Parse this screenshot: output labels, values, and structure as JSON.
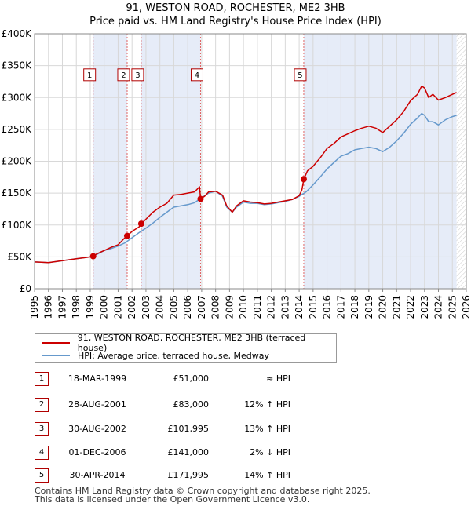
{
  "chart_data": {
    "type": "line",
    "title": "91, WESTON ROAD, ROCHESTER, ME2 3HB",
    "subtitle": "Price paid vs. HM Land Registry's House Price Index (HPI)",
    "xlabel": "",
    "ylabel": "",
    "xlim": [
      1995,
      2026
    ],
    "ylim": [
      0,
      400000
    ],
    "x_ticks": [
      "1995",
      "1996",
      "1997",
      "1998",
      "1999",
      "2000",
      "2001",
      "2002",
      "2003",
      "2004",
      "2005",
      "2006",
      "2007",
      "2008",
      "2009",
      "2010",
      "2011",
      "2012",
      "2013",
      "2014",
      "2015",
      "2016",
      "2017",
      "2018",
      "2019",
      "2020",
      "2021",
      "2022",
      "2023",
      "2024",
      "2025",
      "2026"
    ],
    "y_tick_values": [
      0,
      50000,
      100000,
      150000,
      200000,
      250000,
      300000,
      350000,
      400000
    ],
    "y_ticks": [
      "£0",
      "£50K",
      "£100K",
      "£150K",
      "£200K",
      "£250K",
      "£300K",
      "£350K",
      "£400K"
    ],
    "grid": true,
    "series": [
      {
        "name": "91, WESTON ROAD, ROCHESTER, ME2 3HB (terraced house)",
        "color": "#cc0000",
        "x": [
          1995.0,
          1995.5,
          1996.0,
          1996.5,
          1997.0,
          1997.5,
          1998.0,
          1998.5,
          1999.0,
          1999.21,
          1999.5,
          2000.0,
          2000.5,
          2001.0,
          2001.4,
          2001.65,
          2002.0,
          2002.5,
          2002.66,
          2003.0,
          2003.5,
          2004.0,
          2004.5,
          2005.0,
          2005.5,
          2006.0,
          2006.5,
          2006.85,
          2006.92,
          2007.2,
          2007.5,
          2008.0,
          2008.5,
          2008.8,
          2009.2,
          2009.5,
          2010.0,
          2010.5,
          2011.0,
          2011.5,
          2012.0,
          2012.5,
          2013.0,
          2013.5,
          2014.0,
          2014.2,
          2014.33,
          2014.6,
          2015.0,
          2015.5,
          2016.0,
          2016.5,
          2017.0,
          2017.5,
          2018.0,
          2018.5,
          2019.0,
          2019.5,
          2020.0,
          2020.5,
          2021.0,
          2021.5,
          2022.0,
          2022.5,
          2022.8,
          2023.0,
          2023.3,
          2023.6,
          2024.0,
          2024.5,
          2025.0,
          2025.3
        ],
        "values": [
          42000,
          41500,
          41000,
          42500,
          44000,
          45500,
          47000,
          48500,
          50000,
          51000,
          55000,
          60000,
          65000,
          69000,
          78000,
          83000,
          90000,
          97000,
          101995,
          109000,
          120000,
          128000,
          134000,
          147000,
          148000,
          150000,
          152000,
          160000,
          141000,
          145000,
          152000,
          153000,
          147000,
          130000,
          120000,
          130000,
          138000,
          136000,
          135000,
          133000,
          134000,
          136000,
          138000,
          140000,
          146000,
          155000,
          171995,
          185000,
          192000,
          205000,
          220000,
          228000,
          238000,
          243000,
          248000,
          252000,
          255000,
          252000,
          245000,
          255000,
          265000,
          278000,
          295000,
          305000,
          318000,
          315000,
          300000,
          305000,
          296000,
          300000,
          305000,
          308000
        ]
      },
      {
        "name": "HPI: Average price, terraced house, Medway",
        "color": "#6699cc",
        "x": [
          1995.0,
          1995.5,
          1996.0,
          1996.5,
          1997.0,
          1997.5,
          1998.0,
          1998.5,
          1999.0,
          1999.5,
          2000.0,
          2000.5,
          2001.0,
          2001.5,
          2002.0,
          2002.5,
          2003.0,
          2003.5,
          2004.0,
          2004.5,
          2005.0,
          2005.5,
          2006.0,
          2006.5,
          2007.0,
          2007.5,
          2008.0,
          2008.5,
          2008.8,
          2009.2,
          2009.5,
          2010.0,
          2010.5,
          2011.0,
          2011.5,
          2012.0,
          2012.5,
          2013.0,
          2013.5,
          2014.0,
          2014.5,
          2015.0,
          2015.5,
          2016.0,
          2016.5,
          2017.0,
          2017.5,
          2018.0,
          2018.5,
          2019.0,
          2019.5,
          2020.0,
          2020.5,
          2021.0,
          2021.5,
          2022.0,
          2022.5,
          2022.8,
          2023.0,
          2023.3,
          2023.6,
          2024.0,
          2024.5,
          2025.0,
          2025.3
        ],
        "values": [
          42000,
          41500,
          41000,
          42500,
          44000,
          45500,
          47000,
          48500,
          50000,
          54000,
          60000,
          63000,
          67000,
          72000,
          80000,
          88000,
          95000,
          103000,
          112000,
          120000,
          128000,
          130000,
          132000,
          135000,
          143000,
          150000,
          153000,
          145000,
          128000,
          120000,
          128000,
          136000,
          134000,
          134000,
          132000,
          133000,
          135000,
          137000,
          140000,
          145000,
          152000,
          163000,
          175000,
          188000,
          198000,
          208000,
          212000,
          218000,
          220000,
          222000,
          220000,
          215000,
          222000,
          232000,
          244000,
          258000,
          268000,
          275000,
          272000,
          262000,
          262000,
          257000,
          265000,
          270000,
          272000
        ]
      }
    ],
    "sale_points": [
      {
        "label": "1",
        "x": 1999.21,
        "y": 51000
      },
      {
        "label": "2",
        "x": 2001.65,
        "y": 83000
      },
      {
        "label": "3",
        "x": 2002.66,
        "y": 101995
      },
      {
        "label": "4",
        "x": 2006.92,
        "y": 141000
      },
      {
        "label": "5",
        "x": 2014.33,
        "y": 171995
      }
    ],
    "sale_box_value": 335000,
    "shaded_periods": [
      {
        "from": 1999.21,
        "to": 2001.65
      },
      {
        "from": 2002.66,
        "to": 2006.92
      },
      {
        "from": 2014.33,
        "to": 2025.3
      }
    ],
    "future_hatch_from": 2025.3
  },
  "legend": {
    "property_label": "91, WESTON ROAD, ROCHESTER, ME2 3HB (terraced house)",
    "hpi_label": "HPI: Average price, terraced house, Medway"
  },
  "sales": [
    {
      "num": "1",
      "date": "18-MAR-1999",
      "price": "£51,000",
      "hpi": "≈ HPI"
    },
    {
      "num": "2",
      "date": "28-AUG-2001",
      "price": "£83,000",
      "hpi": "12% ↑ HPI"
    },
    {
      "num": "3",
      "date": "30-AUG-2002",
      "price": "£101,995",
      "hpi": "13% ↑ HPI"
    },
    {
      "num": "4",
      "date": "01-DEC-2006",
      "price": "£141,000",
      "hpi": "2% ↓ HPI"
    },
    {
      "num": "5",
      "date": "30-APR-2014",
      "price": "£171,995",
      "hpi": "14% ↑ HPI"
    }
  ],
  "footer": {
    "line1": "Contains HM Land Registry data © Crown copyright and database right 2025.",
    "line2": "This data is licensed under the Open Government Licence v3.0."
  }
}
